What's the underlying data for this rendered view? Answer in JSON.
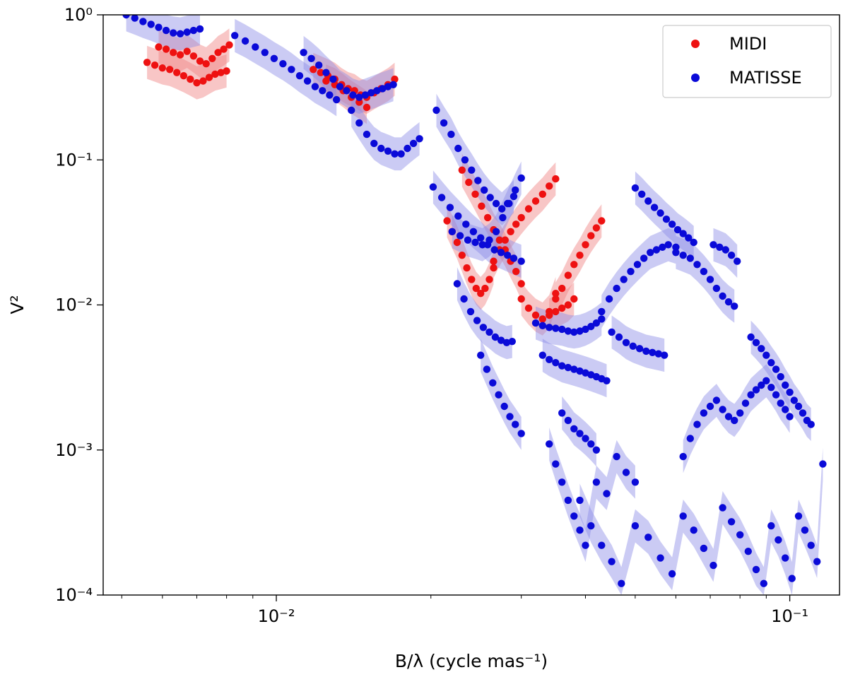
{
  "chart_data": {
    "type": "scatter",
    "title": "",
    "xlabel": "B/λ (cycle mas⁻¹)",
    "ylabel": "V²",
    "xscale": "log",
    "yscale": "log",
    "xlim": [
      0.0046,
      0.125
    ],
    "ylim": [
      0.0001,
      1
    ],
    "x_ticks": [
      {
        "value": 0.01,
        "label": "10⁻²"
      },
      {
        "value": 0.1,
        "label": "10⁻¹"
      }
    ],
    "y_ticks": [
      {
        "value": 0.0001,
        "label": "10⁻⁴"
      },
      {
        "value": 0.001,
        "label": "10⁻³"
      },
      {
        "value": 0.01,
        "label": "10⁻²"
      },
      {
        "value": 0.1,
        "label": "10⁻¹"
      },
      {
        "value": 1,
        "label": "10⁰"
      }
    ],
    "grid": false,
    "legend_position": "upper right",
    "series": [
      {
        "name": "MIDI",
        "color": "#ee1111",
        "band_color": "#f08080",
        "segments": [
          {
            "x": [
              0.0056,
              0.0058,
              0.006,
              0.0062,
              0.0064,
              0.0066,
              0.0068,
              0.007,
              0.0072,
              0.0074,
              0.0076,
              0.0078,
              0.008
            ],
            "y": [
              0.47,
              0.45,
              0.43,
              0.42,
              0.4,
              0.38,
              0.36,
              0.34,
              0.35,
              0.37,
              0.39,
              0.4,
              0.41
            ]
          },
          {
            "x": [
              0.0059,
              0.0061,
              0.0063,
              0.0065,
              0.0067,
              0.0069,
              0.0071,
              0.0073,
              0.0075,
              0.0077,
              0.0079,
              0.0081
            ],
            "y": [
              0.6,
              0.58,
              0.55,
              0.53,
              0.56,
              0.52,
              0.48,
              0.46,
              0.5,
              0.55,
              0.58,
              0.62
            ]
          },
          {
            "x": [
              0.0118,
              0.0122,
              0.0126,
              0.013,
              0.0134,
              0.0138,
              0.0142,
              0.0146,
              0.015,
              0.0155,
              0.016,
              0.0165,
              0.017
            ],
            "y": [
              0.42,
              0.4,
              0.38,
              0.36,
              0.33,
              0.31,
              0.3,
              0.28,
              0.27,
              0.29,
              0.31,
              0.33,
              0.36
            ]
          },
          {
            "x": [
              0.0125,
              0.013,
              0.0135,
              0.014,
              0.0145,
              0.015
            ],
            "y": [
              0.35,
              0.33,
              0.3,
              0.27,
              0.25,
              0.23
            ]
          },
          {
            "x": [
              0.0215,
              0.022,
              0.0225,
              0.023,
              0.0235,
              0.024,
              0.0245,
              0.025,
              0.0255,
              0.026,
              0.0265
            ],
            "y": [
              0.038,
              0.032,
              0.027,
              0.022,
              0.018,
              0.015,
              0.013,
              0.012,
              0.013,
              0.015,
              0.018
            ]
          },
          {
            "x": [
              0.023,
              0.0237,
              0.0244,
              0.0251,
              0.0258,
              0.0265,
              0.0272,
              0.0279,
              0.0286,
              0.0293,
              0.03
            ],
            "y": [
              0.085,
              0.07,
              0.058,
              0.048,
              0.04,
              0.033,
              0.028,
              0.024,
              0.02,
              0.017,
              0.014
            ]
          },
          {
            "x": [
              0.0265,
              0.0272,
              0.0279,
              0.0286,
              0.0293,
              0.03,
              0.031,
              0.032,
              0.033,
              0.034,
              0.035
            ],
            "y": [
              0.02,
              0.024,
              0.028,
              0.032,
              0.036,
              0.04,
              0.046,
              0.052,
              0.058,
              0.066,
              0.074
            ]
          },
          {
            "x": [
              0.03,
              0.031,
              0.032,
              0.033,
              0.034,
              0.035
            ],
            "y": [
              0.011,
              0.0095,
              0.0085,
              0.008,
              0.009,
              0.012
            ]
          },
          {
            "x": [
              0.035,
              0.036,
              0.037,
              0.038,
              0.039,
              0.04,
              0.041,
              0.042,
              0.043
            ],
            "y": [
              0.011,
              0.013,
              0.016,
              0.019,
              0.022,
              0.026,
              0.03,
              0.034,
              0.038
            ]
          },
          {
            "x": [
              0.034,
              0.035,
              0.036,
              0.037,
              0.038
            ],
            "y": [
              0.0085,
              0.009,
              0.0095,
              0.01,
              0.011
            ]
          }
        ]
      },
      {
        "name": "MATISSE",
        "color": "#0a0ad8",
        "band_color": "#8c8ce6",
        "segments": [
          {
            "x": [
              0.0051,
              0.0053,
              0.0055,
              0.0057,
              0.0059,
              0.0061,
              0.0063,
              0.0065,
              0.0067,
              0.0069,
              0.0071
            ],
            "y": [
              1.0,
              0.95,
              0.9,
              0.86,
              0.82,
              0.78,
              0.75,
              0.74,
              0.76,
              0.78,
              0.8
            ]
          },
          {
            "x": [
              0.0083,
              0.0087,
              0.0091,
              0.0095,
              0.0099,
              0.0103,
              0.0107,
              0.0111,
              0.0115,
              0.0119,
              0.0123,
              0.0127,
              0.0131
            ],
            "y": [
              0.72,
              0.66,
              0.6,
              0.55,
              0.5,
              0.46,
              0.42,
              0.38,
              0.35,
              0.32,
              0.3,
              0.28,
              0.26
            ]
          },
          {
            "x": [
              0.0113,
              0.0117,
              0.0121,
              0.0125,
              0.0129,
              0.0133,
              0.0137,
              0.0141,
              0.0145,
              0.0149,
              0.0153,
              0.0157,
              0.0161,
              0.0165,
              0.0169
            ],
            "y": [
              0.55,
              0.5,
              0.45,
              0.4,
              0.36,
              0.32,
              0.3,
              0.28,
              0.27,
              0.28,
              0.29,
              0.3,
              0.31,
              0.32,
              0.33
            ]
          },
          {
            "x": [
              0.014,
              0.0145,
              0.015,
              0.0155,
              0.016,
              0.0165,
              0.017,
              0.0175,
              0.018,
              0.0185,
              0.019
            ],
            "y": [
              0.22,
              0.18,
              0.15,
              0.13,
              0.12,
              0.115,
              0.11,
              0.11,
              0.12,
              0.13,
              0.14
            ]
          },
          {
            "x": [
              0.0205,
              0.0212,
              0.0219,
              0.0226,
              0.0233,
              0.024,
              0.0247,
              0.0254,
              0.0261,
              0.0268,
              0.0275,
              0.0282,
              0.029
            ],
            "y": [
              0.22,
              0.18,
              0.15,
              0.12,
              0.1,
              0.085,
              0.072,
              0.062,
              0.055,
              0.05,
              0.046,
              0.05,
              0.056
            ]
          },
          {
            "x": [
              0.0202,
              0.021,
              0.0218,
              0.0226,
              0.0234,
              0.0242,
              0.025,
              0.0258,
              0.0266,
              0.0274,
              0.0282,
              0.029,
              0.03
            ],
            "y": [
              0.065,
              0.055,
              0.047,
              0.041,
              0.036,
              0.032,
              0.029,
              0.026,
              0.024,
              0.023,
              0.022,
              0.021,
              0.02
            ]
          },
          {
            "x": [
              0.022,
              0.0228,
              0.0236,
              0.0244,
              0.0252,
              0.026,
              0.0268,
              0.0276,
              0.0284,
              0.0292,
              0.03
            ],
            "y": [
              0.032,
              0.03,
              0.028,
              0.027,
              0.026,
              0.028,
              0.032,
              0.04,
              0.05,
              0.062,
              0.075
            ]
          },
          {
            "x": [
              0.0225,
              0.0232,
              0.0239,
              0.0246,
              0.0253,
              0.026,
              0.0267,
              0.0274,
              0.0281,
              0.0288
            ],
            "y": [
              0.014,
              0.011,
              0.009,
              0.0078,
              0.007,
              0.0065,
              0.006,
              0.0057,
              0.0055,
              0.0056
            ]
          },
          {
            "x": [
              0.025,
              0.0257,
              0.0264,
              0.0271,
              0.0278,
              0.0285,
              0.0292,
              0.03
            ],
            "y": [
              0.0045,
              0.0036,
              0.0029,
              0.0024,
              0.002,
              0.0017,
              0.0015,
              0.0013
            ]
          },
          {
            "x": [
              0.032,
              0.033,
              0.034,
              0.035,
              0.036,
              0.037,
              0.038,
              0.039,
              0.04,
              0.041,
              0.042,
              0.043
            ],
            "y": [
              0.0075,
              0.0072,
              0.007,
              0.0069,
              0.0068,
              0.0066,
              0.0065,
              0.0066,
              0.0068,
              0.0071,
              0.0075,
              0.008
            ]
          },
          {
            "x": [
              0.033,
              0.034,
              0.035,
              0.036,
              0.037,
              0.038,
              0.039,
              0.04,
              0.041,
              0.042,
              0.043,
              0.044
            ],
            "y": [
              0.0045,
              0.0042,
              0.004,
              0.0038,
              0.0037,
              0.0036,
              0.0035,
              0.0034,
              0.0033,
              0.0032,
              0.0031,
              0.003
            ]
          },
          {
            "x": [
              0.036,
              0.037,
              0.038,
              0.039,
              0.04,
              0.041,
              0.042
            ],
            "y": [
              0.0018,
              0.0016,
              0.0014,
              0.0013,
              0.0012,
              0.0011,
              0.001
            ]
          },
          {
            "x": [
              0.043,
              0.0445,
              0.046,
              0.0475,
              0.049,
              0.0505,
              0.052,
              0.0535,
              0.055,
              0.0565,
              0.058,
              0.06
            ],
            "y": [
              0.009,
              0.011,
              0.013,
              0.015,
              0.017,
              0.019,
              0.021,
              0.023,
              0.024,
              0.025,
              0.026,
              0.025
            ]
          },
          {
            "x": [
              0.045,
              0.0465,
              0.048,
              0.0495,
              0.051,
              0.0525,
              0.054,
              0.0555,
              0.057
            ],
            "y": [
              0.0065,
              0.006,
              0.0055,
              0.0052,
              0.005,
              0.0048,
              0.0047,
              0.0046,
              0.0045
            ]
          },
          {
            "x": [
              0.05,
              0.0515,
              0.053,
              0.0545,
              0.056,
              0.0575,
              0.059,
              0.0605,
              0.062,
              0.0635,
              0.065
            ],
            "y": [
              0.064,
              0.058,
              0.052,
              0.047,
              0.043,
              0.039,
              0.036,
              0.033,
              0.031,
              0.029,
              0.027
            ]
          },
          {
            "x": [
              0.06,
              0.062,
              0.064,
              0.066,
              0.068,
              0.07,
              0.072,
              0.074,
              0.076,
              0.078
            ],
            "y": [
              0.023,
              0.022,
              0.021,
              0.019,
              0.017,
              0.015,
              0.013,
              0.0115,
              0.0105,
              0.0098
            ]
          },
          {
            "x": [
              0.071,
              0.073,
              0.075,
              0.077,
              0.079
            ],
            "y": [
              0.026,
              0.025,
              0.024,
              0.022,
              0.02
            ]
          },
          {
            "x": [
              0.084,
              0.086,
              0.088,
              0.09,
              0.092,
              0.094,
              0.096,
              0.098,
              0.1,
              0.102,
              0.104,
              0.106,
              0.108,
              0.11
            ],
            "y": [
              0.006,
              0.0055,
              0.005,
              0.0045,
              0.004,
              0.0036,
              0.0032,
              0.0028,
              0.0025,
              0.0022,
              0.002,
              0.0018,
              0.0016,
              0.0015
            ]
          },
          {
            "x": [
              0.062,
              0.064,
              0.066,
              0.068,
              0.07,
              0.072,
              0.074,
              0.076,
              0.078,
              0.08,
              0.082,
              0.084,
              0.086,
              0.088,
              0.09,
              0.092,
              0.094,
              0.096,
              0.098,
              0.1
            ],
            "y": [
              0.0009,
              0.0012,
              0.0015,
              0.0018,
              0.002,
              0.0022,
              0.0019,
              0.0017,
              0.0016,
              0.0018,
              0.0021,
              0.0024,
              0.0026,
              0.0028,
              0.003,
              0.0027,
              0.0024,
              0.0021,
              0.0019,
              0.0017
            ]
          },
          {
            "x": [
              0.039,
              0.041,
              0.043,
              0.045,
              0.047,
              0.05,
              0.053,
              0.056,
              0.059,
              0.062,
              0.065,
              0.068,
              0.071,
              0.074,
              0.077,
              0.08,
              0.083,
              0.086,
              0.089,
              0.092,
              0.095,
              0.098,
              0.101,
              0.104,
              0.107,
              0.11,
              0.113,
              0.116
            ],
            "y": [
              0.00045,
              0.0003,
              0.00022,
              0.00017,
              0.00012,
              0.0003,
              0.00025,
              0.00018,
              0.00014,
              0.00035,
              0.00028,
              0.00021,
              0.00016,
              0.0004,
              0.00032,
              0.00026,
              0.0002,
              0.00015,
              0.00012,
              0.0003,
              0.00024,
              0.00018,
              0.00013,
              0.00035,
              0.00028,
              0.00022,
              0.00017,
              0.0008
            ]
          },
          {
            "x": [
              0.034,
              0.035,
              0.036,
              0.037,
              0.038,
              0.039,
              0.04,
              0.042,
              0.044,
              0.046,
              0.048,
              0.05
            ],
            "y": [
              0.0011,
              0.0008,
              0.0006,
              0.00045,
              0.00035,
              0.00028,
              0.00022,
              0.0006,
              0.0005,
              0.0009,
              0.0007,
              0.0006
            ]
          }
        ]
      }
    ]
  }
}
